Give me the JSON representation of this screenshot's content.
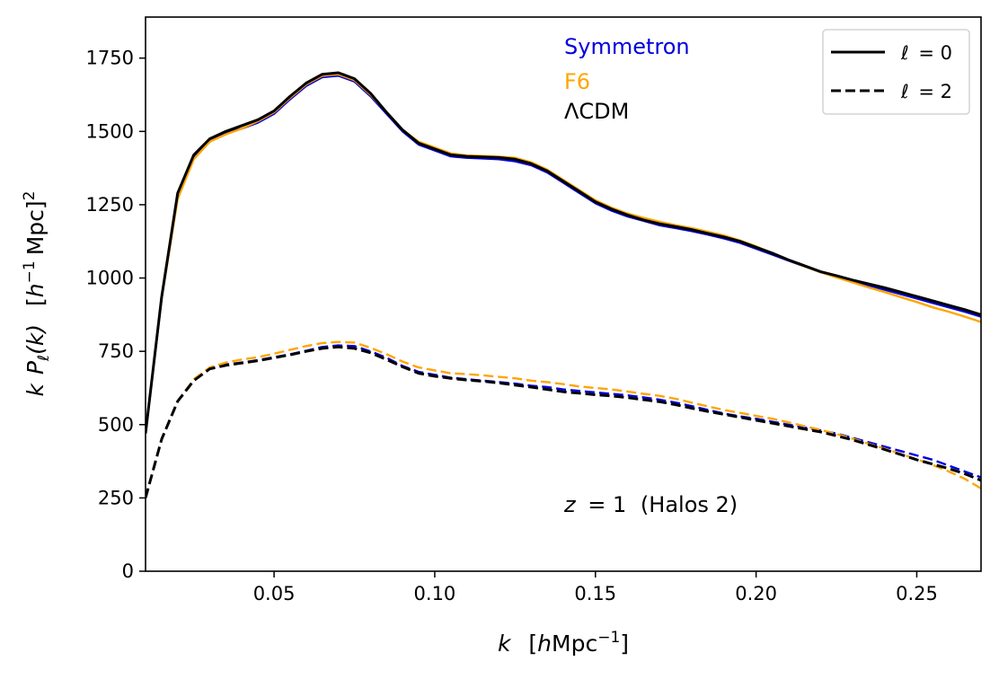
{
  "chart_data": {
    "type": "line",
    "title": "",
    "xlim": [
      0.01,
      0.27
    ],
    "ylim": [
      0,
      1890
    ],
    "x_ticks": [
      {
        "value": 0.05,
        "label": "0.05"
      },
      {
        "value": 0.1,
        "label": "0.10"
      },
      {
        "value": 0.15,
        "label": "0.15"
      },
      {
        "value": 0.2,
        "label": "0.20"
      },
      {
        "value": 0.25,
        "label": "0.25"
      }
    ],
    "y_ticks": [
      {
        "value": 0,
        "label": "0"
      },
      {
        "value": 250,
        "label": "250"
      },
      {
        "value": 500,
        "label": "500"
      },
      {
        "value": 750,
        "label": "750"
      },
      {
        "value": 1000,
        "label": "1000"
      },
      {
        "value": 1250,
        "label": "1250"
      },
      {
        "value": 1500,
        "label": "1500"
      },
      {
        "value": 1750,
        "label": "1750"
      }
    ],
    "xlabel": {
      "k": "k",
      "open": "[",
      "h": "h",
      "mpc": "Mpc",
      "sup": "−1",
      "close": "]"
    },
    "ylabel": {
      "k": "k",
      "P": "P",
      "sub": "ℓ",
      "arg": "(k)",
      "open": "[",
      "h": "h",
      "sup1": "−1",
      "mpc": "Mpc]",
      "sup2": "2"
    },
    "grid": false,
    "models": [
      {
        "name": "Symmetron",
        "color": "#0000dd"
      },
      {
        "name": "F6",
        "color": "#ffa500"
      },
      {
        "name": "ΛCDM",
        "color": "#000000"
      }
    ],
    "legend": {
      "position": "top-right",
      "entries": [
        {
          "var": "ℓ",
          "eq": "= 0",
          "style": "solid"
        },
        {
          "var": "ℓ",
          "eq": "= 2",
          "style": "dashed"
        }
      ]
    },
    "annotation": {
      "z": "z",
      "eq": "= 1",
      "rest": "(Halos 2)"
    },
    "x": [
      0.01,
      0.015,
      0.02,
      0.025,
      0.03,
      0.035,
      0.04,
      0.045,
      0.05,
      0.055,
      0.06,
      0.065,
      0.07,
      0.075,
      0.08,
      0.085,
      0.09,
      0.095,
      0.1,
      0.105,
      0.11,
      0.115,
      0.12,
      0.125,
      0.13,
      0.135,
      0.14,
      0.145,
      0.15,
      0.155,
      0.16,
      0.165,
      0.17,
      0.175,
      0.18,
      0.185,
      0.19,
      0.195,
      0.2,
      0.205,
      0.21,
      0.215,
      0.22,
      0.225,
      0.23,
      0.235,
      0.24,
      0.245,
      0.25,
      0.255,
      0.26,
      0.265,
      0.27
    ],
    "series": [
      {
        "name": "Symmetron ℓ=0",
        "model": "Symmetron",
        "ell": 0,
        "color": "#0000dd",
        "dash": "solid",
        "values": [
          470,
          930,
          1280,
          1410,
          1465,
          1495,
          1510,
          1530,
          1560,
          1610,
          1655,
          1685,
          1690,
          1670,
          1620,
          1560,
          1500,
          1455,
          1435,
          1415,
          1410,
          1408,
          1405,
          1398,
          1385,
          1360,
          1325,
          1290,
          1255,
          1230,
          1210,
          1195,
          1180,
          1170,
          1160,
          1148,
          1135,
          1120,
          1100,
          1080,
          1060,
          1040,
          1020,
          1005,
          990,
          975,
          960,
          945,
          930,
          915,
          900,
          885,
          868
        ]
      },
      {
        "name": "F6 ℓ=0",
        "model": "F6",
        "ell": 0,
        "color": "#ffa500",
        "dash": "solid",
        "values": [
          470,
          930,
          1270,
          1405,
          1465,
          1490,
          1510,
          1535,
          1565,
          1615,
          1660,
          1690,
          1695,
          1675,
          1625,
          1565,
          1505,
          1465,
          1445,
          1425,
          1418,
          1416,
          1414,
          1410,
          1395,
          1370,
          1335,
          1300,
          1265,
          1240,
          1220,
          1205,
          1192,
          1180,
          1170,
          1158,
          1145,
          1128,
          1108,
          1085,
          1062,
          1040,
          1020,
          1002,
          985,
          968,
          952,
          935,
          918,
          900,
          885,
          868,
          850
        ]
      },
      {
        "name": "ΛCDM ℓ=0",
        "model": "ΛCDM",
        "ell": 0,
        "color": "#000000",
        "dash": "solid",
        "values": [
          470,
          935,
          1290,
          1420,
          1475,
          1500,
          1520,
          1540,
          1570,
          1620,
          1665,
          1695,
          1700,
          1680,
          1630,
          1565,
          1505,
          1460,
          1440,
          1420,
          1415,
          1413,
          1411,
          1405,
          1390,
          1365,
          1330,
          1295,
          1260,
          1235,
          1215,
          1198,
          1185,
          1175,
          1165,
          1152,
          1140,
          1125,
          1105,
          1085,
          1062,
          1042,
          1022,
          1008,
          993,
          980,
          967,
          952,
          937,
          922,
          907,
          892,
          875
        ]
      },
      {
        "name": "Symmetron ℓ=2",
        "model": "Symmetron",
        "ell": 2,
        "color": "#0000dd",
        "dash": "dashed",
        "values": [
          250,
          450,
          580,
          650,
          690,
          705,
          712,
          720,
          730,
          740,
          752,
          765,
          770,
          768,
          750,
          728,
          700,
          680,
          670,
          660,
          655,
          650,
          645,
          640,
          633,
          628,
          620,
          615,
          610,
          605,
          600,
          593,
          585,
          575,
          563,
          550,
          538,
          528,
          520,
          510,
          500,
          490,
          480,
          470,
          455,
          440,
          425,
          410,
          395,
          380,
          360,
          340,
          320
        ]
      },
      {
        "name": "F6 ℓ=2",
        "model": "F6",
        "ell": 2,
        "color": "#ffa500",
        "dash": "dashed",
        "values": [
          250,
          450,
          580,
          655,
          695,
          712,
          722,
          730,
          742,
          755,
          768,
          778,
          782,
          780,
          762,
          740,
          715,
          695,
          685,
          675,
          672,
          668,
          663,
          658,
          650,
          645,
          638,
          630,
          625,
          620,
          613,
          605,
          598,
          588,
          575,
          562,
          550,
          540,
          530,
          520,
          508,
          495,
          482,
          468,
          452,
          435,
          418,
          400,
          382,
          362,
          340,
          315,
          282
        ]
      },
      {
        "name": "ΛCDM ℓ=2",
        "model": "ΛCDM",
        "ell": 2,
        "color": "#000000",
        "dash": "dashed",
        "values": [
          250,
          450,
          580,
          650,
          690,
          702,
          710,
          718,
          728,
          738,
          750,
          760,
          765,
          760,
          745,
          722,
          697,
          675,
          665,
          658,
          652,
          648,
          642,
          635,
          628,
          620,
          612,
          607,
          602,
          598,
          592,
          585,
          578,
          568,
          556,
          545,
          535,
          525,
          515,
          505,
          495,
          485,
          475,
          462,
          448,
          432,
          415,
          398,
          380,
          365,
          350,
          332,
          310
        ]
      }
    ]
  }
}
